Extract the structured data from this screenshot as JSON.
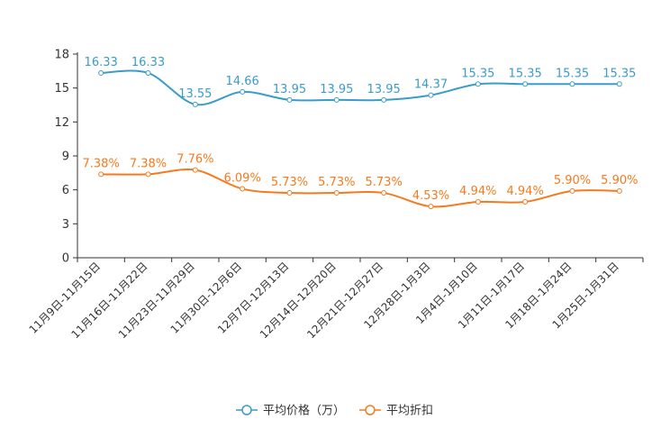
{
  "chart_data": {
    "type": "line",
    "title": "",
    "xlabel": "",
    "ylabel": "",
    "ylim": [
      0,
      18
    ],
    "yticks": [
      "0",
      "3",
      "6",
      "9",
      "12",
      "15",
      "18"
    ],
    "categories": [
      "11月9日-11月15日",
      "11月16日-11月22日",
      "11月23日-11月29日",
      "11月30日-12月6日",
      "12月7日-12月13日",
      "12月14日-12月20日",
      "12月21日-12月27日",
      "12月28日-1月3日",
      "1月4日-1月10日",
      "1月11日-1月17日",
      "1月18日-1月24日",
      "1月25日-1月31日"
    ],
    "series": [
      {
        "name": "平均价格（万）",
        "color": "#3a9cc9",
        "values": [
          16.33,
          16.33,
          13.55,
          14.66,
          13.95,
          13.95,
          13.95,
          14.37,
          15.35,
          15.35,
          15.35,
          15.35
        ],
        "labels": [
          "16.33",
          "16.33",
          "13.55",
          "14.66",
          "13.95",
          "13.95",
          "13.95",
          "14.37",
          "15.35",
          "15.35",
          "15.35",
          "15.35"
        ]
      },
      {
        "name": "平均折扣",
        "color": "#f57a1e",
        "values": [
          7.38,
          7.38,
          7.76,
          6.09,
          5.73,
          5.73,
          5.73,
          4.53,
          4.94,
          4.94,
          5.9,
          5.9
        ],
        "labels": [
          "7.38%",
          "7.38%",
          "7.76%",
          "6.09%",
          "5.73%",
          "5.73%",
          "5.73%",
          "4.53%",
          "4.94%",
          "4.94%",
          "5.90%",
          "5.90%"
        ]
      }
    ],
    "legend_position": "bottom-center",
    "grid": false
  }
}
